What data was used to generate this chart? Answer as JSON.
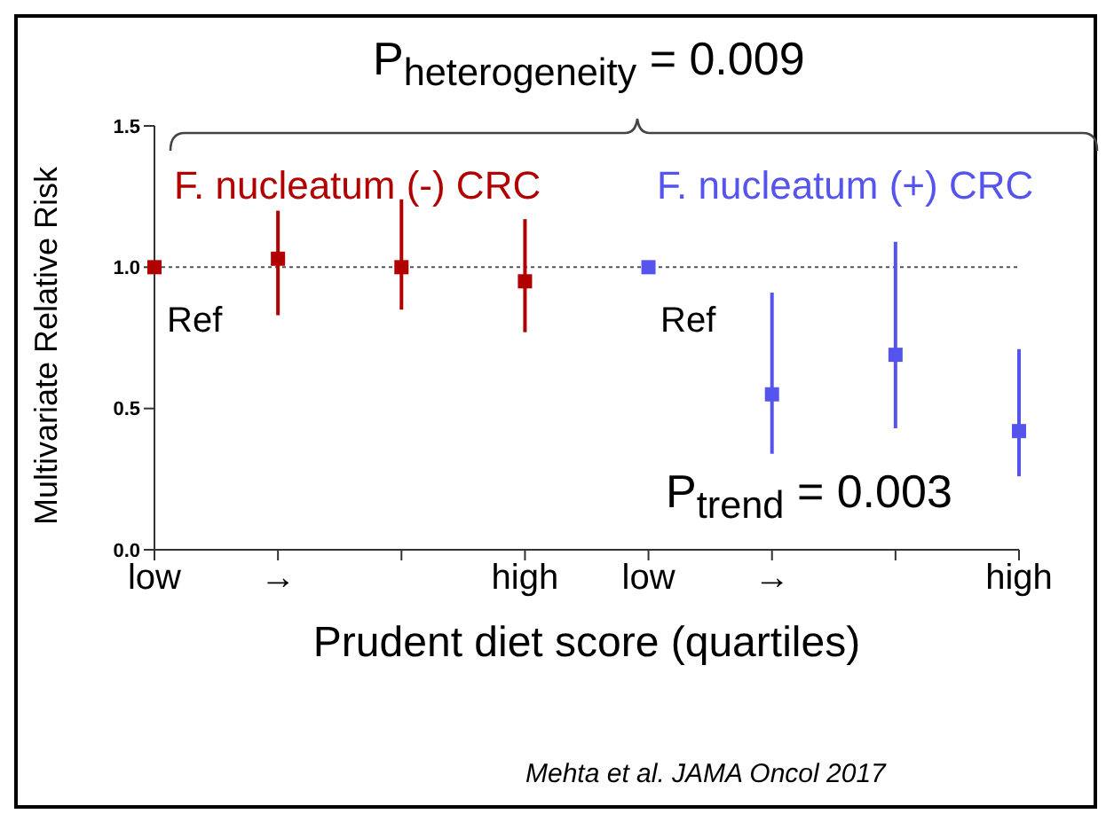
{
  "chart_data": {
    "type": "scatter",
    "title": "P$_{heterogeneity}$ = 0.009",
    "xlabel": "Prudent diet score (quartiles)",
    "ylabel": "Multivariate Relative Risk",
    "categories": [
      "low",
      "→",
      null,
      "high",
      null,
      "low",
      "→",
      null,
      "high"
    ],
    "series": [
      {
        "name": "F. nucleatum (-) CRC",
        "color": "#b00000",
        "values": [
          1.0,
          1.03,
          1.0,
          0.95,
          null,
          null,
          null,
          null,
          null
        ],
        "errors": [
          null,
          [
            0.83,
            1.2
          ],
          [
            0.85,
            1.24
          ],
          [
            0.77,
            1.17
          ],
          null,
          null,
          null,
          null,
          null
        ]
      },
      {
        "name": "F. nucleatum (+) CRC",
        "color": "#5555ee",
        "values": [
          null,
          null,
          null,
          null,
          null,
          1.0,
          0.55,
          0.69,
          0.42
        ],
        "errors": [
          null,
          null,
          null,
          null,
          null,
          null,
          [
            0.34,
            0.91
          ],
          [
            0.43,
            1.09
          ],
          [
            0.26,
            0.71
          ]
        ]
      }
    ],
    "ylim": [
      0,
      1.5
    ],
    "yticks": [
      {
        "value": 0,
        "label": "0.0"
      },
      {
        "value": 0.5,
        "label": "0.5"
      },
      {
        "value": 1,
        "label": "1.0"
      },
      {
        "value": 1.5,
        "label": "1.5"
      }
    ],
    "ref_lines": [
      {
        "axis": "y",
        "value": 1.0,
        "color": "#555555",
        "line_style": "dotted"
      }
    ],
    "annotations": [
      "Ref",
      "Ref",
      "P$_{trend}$ = 0.003",
      "Mehta et al. JAMA Oncol 2017"
    ],
    "marker": "square"
  }
}
